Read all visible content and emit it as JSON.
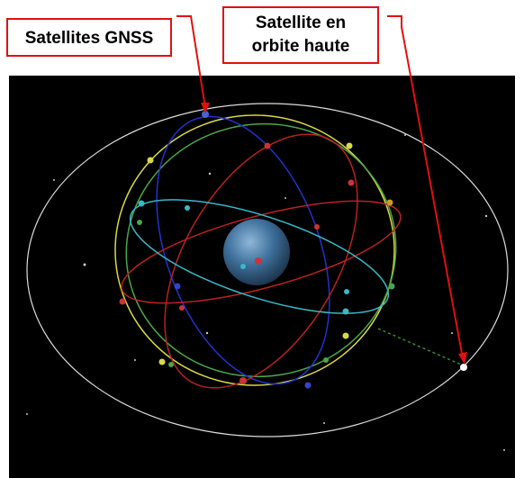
{
  "labels": [
    {
      "lines": [
        "Satellites GNSS"
      ]
    },
    {
      "lines": [
        "Satellite en",
        "orbite haute"
      ]
    }
  ]
}
